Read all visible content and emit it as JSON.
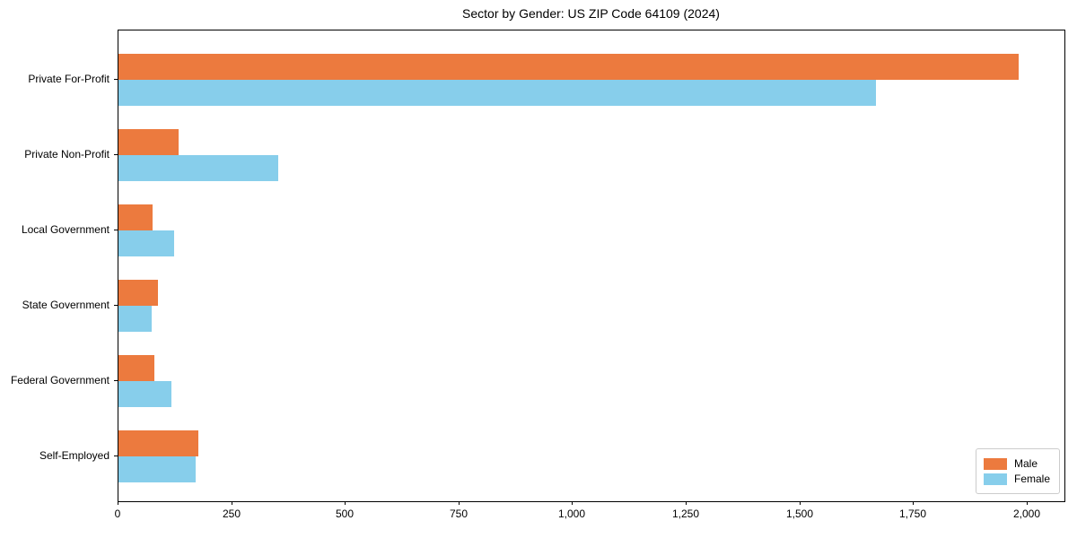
{
  "chart_data": {
    "type": "bar",
    "orientation": "horizontal",
    "title": "Sector by Gender: US ZIP Code 64109 (2024)",
    "categories": [
      "Private For-Profit",
      "Private Non-Profit",
      "Local Government",
      "State Government",
      "Federal Government",
      "Self-Employed"
    ],
    "series": [
      {
        "name": "Male",
        "color": "#ec7a3e",
        "values": [
          1980,
          132,
          75,
          87,
          79,
          175
        ]
      },
      {
        "name": "Female",
        "color": "#87ceeb",
        "values": [
          1667,
          351,
          122,
          73,
          116,
          170
        ]
      }
    ],
    "x_ticks": [
      0,
      250,
      500,
      750,
      1000,
      1250,
      1500,
      1750,
      2000
    ],
    "x_tick_labels": [
      "0",
      "250",
      "500",
      "750",
      "1,000",
      "1,250",
      "1,500",
      "1,750",
      "2,000"
    ],
    "xlim": [
      0,
      2081
    ],
    "xlabel": "",
    "ylabel": "",
    "grid": false,
    "legend_position": "lower right",
    "colors": {
      "male": "#ec7a3e",
      "female": "#87ceeb",
      "spine": "#000000",
      "legend_border": "#cccccc",
      "background": "#ffffff"
    }
  }
}
